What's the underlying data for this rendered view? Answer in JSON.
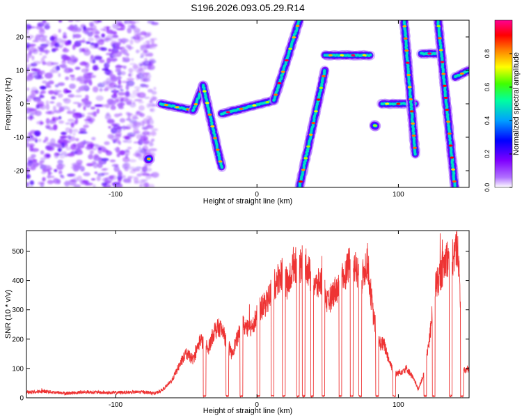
{
  "title": "S196.2026.093.05.29.R14",
  "chart_data": [
    {
      "type": "heatmap",
      "xlabel": "Height of straight line (km)",
      "ylabel": "Frequency (Hz)",
      "xlim": [
        -163,
        150
      ],
      "ylim": [
        -25,
        25
      ],
      "x_ticks": [
        -100,
        0,
        100
      ],
      "y_ticks": [
        -20,
        -10,
        0,
        10,
        20
      ],
      "colorbar": {
        "label": "Normalized spectral amplitude",
        "range": [
          0,
          1
        ],
        "ticks": [
          0.0,
          0.2,
          0.4,
          0.6,
          0.8
        ],
        "colors": [
          "#ffffff",
          "#8000ff",
          "#0000ff",
          "#00c0ff",
          "#00ff40",
          "#ffff00",
          "#ff8000",
          "#ff0000",
          "#ff00a0"
        ]
      },
      "features": [
        {
          "x": [
            -163,
            -72
          ],
          "y": [
            -25,
            25
          ],
          "kind": "noise"
        },
        {
          "x": [
            -77,
            -76
          ],
          "y": [
            -16.5,
            -16.5
          ],
          "kind": "spot"
        },
        {
          "x": [
            -68,
            -45
          ],
          "y": [
            0,
            -2
          ],
          "kind": "track"
        },
        {
          "x": [
            -45,
            -38
          ],
          "y": [
            -2,
            5.5
          ],
          "kind": "track"
        },
        {
          "x": [
            -38,
            -25
          ],
          "y": [
            5.5,
            -19
          ],
          "kind": "track"
        },
        {
          "x": [
            -25,
            12
          ],
          "y": [
            -3,
            1
          ],
          "kind": "track"
        },
        {
          "x": [
            12,
            30
          ],
          "y": [
            1,
            25
          ],
          "kind": "track"
        },
        {
          "x": [
            30,
            48
          ],
          "y": [
            -25,
            10
          ],
          "kind": "track"
        },
        {
          "x": [
            48,
            80
          ],
          "y": [
            14.5,
            14.5
          ],
          "kind": "track"
        },
        {
          "x": [
            83,
            84
          ],
          "y": [
            -6.5,
            -6.5
          ],
          "kind": "spot"
        },
        {
          "x": [
            88,
            112
          ],
          "y": [
            0,
            0
          ],
          "kind": "track"
        },
        {
          "x": [
            104,
            112
          ],
          "y": [
            25,
            -15
          ],
          "kind": "track"
        },
        {
          "x": [
            116,
            128
          ],
          "y": [
            15,
            15
          ],
          "kind": "track"
        },
        {
          "x": [
            128,
            140
          ],
          "y": [
            25,
            -25
          ],
          "kind": "track"
        },
        {
          "x": [
            140,
            150
          ],
          "y": [
            8,
            10
          ],
          "kind": "track"
        }
      ]
    },
    {
      "type": "line",
      "xlabel": "Height of straight line (km)",
      "ylabel": "SNR (10 * v/v)",
      "xlim": [
        -163,
        150
      ],
      "ylim": [
        0,
        570
      ],
      "x_ticks": [
        -100,
        0,
        100
      ],
      "y_ticks": [
        0,
        100,
        200,
        300,
        400,
        500
      ],
      "series": [
        {
          "color": "#ee3333",
          "x": [
            -163,
            -150,
            -135,
            -120,
            -105,
            -90,
            -80,
            -72,
            -66,
            -60,
            -55,
            -50,
            -45,
            -40,
            -35,
            -30,
            -26,
            -22,
            -18,
            -14,
            -10,
            -6,
            -2,
            2,
            6,
            10,
            14,
            18,
            22,
            26,
            30,
            34,
            38,
            42,
            46,
            50,
            54,
            58,
            62,
            66,
            70,
            74,
            78,
            82,
            86,
            90,
            94,
            98,
            102,
            106,
            110,
            114,
            118,
            122,
            126,
            130,
            134,
            138,
            142,
            146,
            150
          ],
          "y": [
            18,
            22,
            15,
            20,
            17,
            19,
            20,
            15,
            30,
            60,
            110,
            150,
            130,
            200,
            160,
            230,
            240,
            200,
            150,
            200,
            250,
            230,
            260,
            300,
            320,
            360,
            400,
            430,
            380,
            460,
            440,
            470,
            410,
            380,
            400,
            320,
            360,
            380,
            420,
            470,
            440,
            400,
            470,
            290,
            190,
            180,
            120,
            80,
            90,
            100,
            70,
            30,
            80,
            200,
            380,
            420,
            480,
            470,
            520,
            90,
            100
          ]
        }
      ],
      "dropouts": [
        [
          -38,
          -36
        ],
        [
          -22,
          -20
        ],
        [
          -12,
          -10
        ],
        [
          0,
          2
        ],
        [
          10,
          12
        ],
        [
          18,
          20
        ],
        [
          28,
          30
        ],
        [
          32,
          34
        ],
        [
          38,
          40
        ],
        [
          46,
          48
        ],
        [
          58,
          60
        ],
        [
          66,
          68
        ],
        [
          72,
          74
        ],
        [
          84,
          86
        ],
        [
          96,
          98
        ],
        [
          118,
          120
        ],
        [
          124,
          126
        ],
        [
          136,
          138
        ],
        [
          144,
          146
        ]
      ]
    }
  ]
}
